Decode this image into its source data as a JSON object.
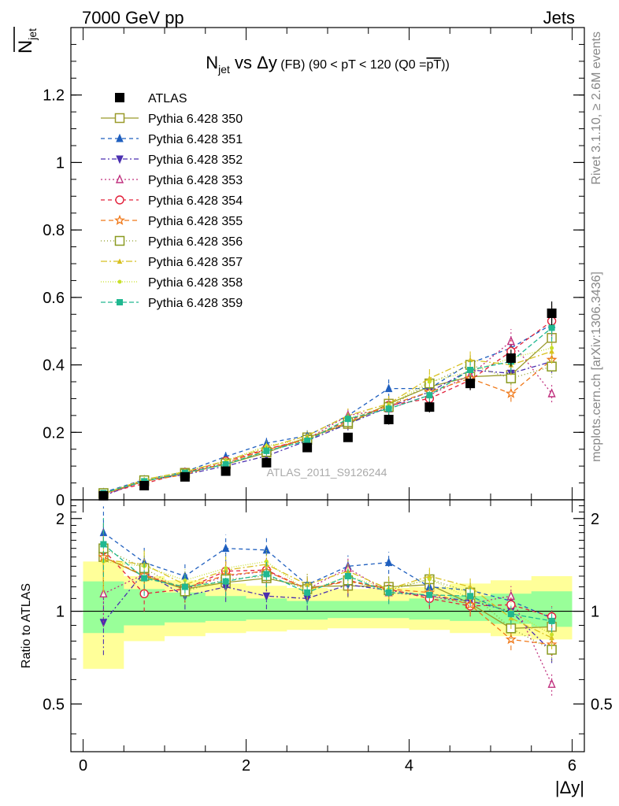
{
  "header": {
    "left": "7000 GeV pp",
    "right": "Jets"
  },
  "side_labels": {
    "rivet": "Rivet 3.1.10, ≥ 2.6M events",
    "mcplots": "mcplots.cern.ch [arXiv:1306.3436]"
  },
  "watermark": "ATLAS_2011_S9126244",
  "chart_data": [
    {
      "type": "line",
      "panel": "main",
      "title": "N_jet vs Δy (FB) (90 < pT < 120 (Q0 = pT))",
      "title_parts": {
        "n": "N",
        "sub": "jet",
        "vs": " vs ",
        "dy": "Δy",
        "fb": " (FB) ",
        "cut": "(90 < pT < 120 (Q0 =",
        "ptbar": "pT",
        "close": "))"
      },
      "ylabel": "N_jet (overlined)",
      "ylabel_parts": {
        "n": "N",
        "sub": "jet"
      },
      "xlim": [
        -0.15,
        6.15
      ],
      "ylim": [
        0,
        1.4
      ],
      "yticks": [
        0,
        0.2,
        0.4,
        0.6,
        0.8,
        1,
        1.2
      ],
      "ytick_labels": [
        "0",
        "0.2",
        "0.4",
        "0.6",
        "0.8",
        "1",
        "1.2"
      ],
      "x": [
        0.25,
        0.75,
        1.25,
        1.75,
        2.25,
        2.75,
        3.25,
        3.75,
        4.25,
        4.75,
        5.25,
        5.75
      ],
      "data": {
        "name": "ATLAS",
        "values": [
          0.012,
          0.042,
          0.068,
          0.085,
          0.11,
          0.155,
          0.185,
          0.238,
          0.275,
          0.345,
          0.42,
          0.553
        ],
        "errors": [
          0.002,
          0.004,
          0.005,
          0.007,
          0.008,
          0.01,
          0.012,
          0.015,
          0.016,
          0.02,
          0.025,
          0.035
        ]
      },
      "legend_position": "top-left"
    },
    {
      "type": "line",
      "panel": "ratio",
      "ylabel": "Ratio to ATLAS",
      "xlabel": "|Δy|",
      "xlim": [
        -0.15,
        6.15
      ],
      "ylim": [
        0.35,
        2.3
      ],
      "xticks": [
        0,
        2,
        4,
        6
      ],
      "xtick_labels": [
        "0",
        "2",
        "4",
        "6"
      ],
      "yticks": [
        0.5,
        1,
        2
      ],
      "ytick_labels": [
        "0.5",
        "1",
        "2"
      ],
      "band_edges": [
        0,
        0.5,
        1,
        1.5,
        2,
        2.5,
        3,
        3.5,
        4,
        4.5,
        5,
        5.5,
        6
      ],
      "band_inner": [
        [
          0.85,
          1.25
        ],
        [
          0.9,
          1.18
        ],
        [
          0.92,
          1.15
        ],
        [
          0.93,
          1.12
        ],
        [
          0.94,
          1.1
        ],
        [
          0.94,
          1.08
        ],
        [
          0.95,
          1.08
        ],
        [
          0.95,
          1.08
        ],
        [
          0.94,
          1.1
        ],
        [
          0.93,
          1.12
        ],
        [
          0.91,
          1.14
        ],
        [
          0.89,
          1.16
        ]
      ],
      "band_outer": [
        [
          0.65,
          1.45
        ],
        [
          0.8,
          1.3
        ],
        [
          0.83,
          1.26
        ],
        [
          0.85,
          1.23
        ],
        [
          0.86,
          1.21
        ],
        [
          0.87,
          1.19
        ],
        [
          0.88,
          1.18
        ],
        [
          0.88,
          1.19
        ],
        [
          0.87,
          1.2
        ],
        [
          0.85,
          1.23
        ],
        [
          0.83,
          1.26
        ],
        [
          0.81,
          1.3
        ]
      ]
    }
  ],
  "series": [
    {
      "name": "Pythia 6.428 350",
      "color": "#9a9a2a",
      "marker": "square-open",
      "dash": "",
      "size": 11,
      "values": [
        0.018,
        0.055,
        0.08,
        0.105,
        0.14,
        0.185,
        0.225,
        0.285,
        0.335,
        0.365,
        0.37,
        0.48
      ],
      "ratio": [
        1.5,
        1.3,
        1.18,
        1.24,
        1.28,
        1.2,
        1.21,
        1.2,
        1.22,
        1.06,
        0.88,
        0.89
      ]
    },
    {
      "name": "Pythia 6.428 351",
      "color": "#1f5fbf",
      "marker": "triangle-up",
      "dash": "5,4",
      "size": 8,
      "values": [
        0.022,
        0.06,
        0.083,
        0.128,
        0.168,
        0.19,
        0.25,
        0.33,
        0.33,
        0.405,
        0.45,
        0.52
      ],
      "ratio": [
        1.8,
        1.44,
        1.3,
        1.6,
        1.58,
        1.22,
        1.4,
        1.44,
        1.2,
        1.17,
        1.08,
        0.95
      ]
    },
    {
      "name": "Pythia 6.428 352",
      "color": "#4a2fb0",
      "marker": "triangle-down",
      "dash": "6,3,2,3",
      "size": 8,
      "values": [
        0.012,
        0.057,
        0.075,
        0.1,
        0.13,
        0.175,
        0.225,
        0.275,
        0.32,
        0.385,
        0.375,
        0.41
      ],
      "ratio": [
        0.92,
        1.34,
        1.12,
        1.2,
        1.12,
        1.1,
        1.22,
        1.17,
        1.12,
        1.08,
        1.0,
        0.74
      ]
    },
    {
      "name": "Pythia 6.428 353",
      "color": "#c0307e",
      "marker": "triangle-up-open",
      "dash": "2,3",
      "size": 8,
      "values": [
        0.014,
        0.055,
        0.08,
        0.11,
        0.15,
        0.18,
        0.25,
        0.27,
        0.31,
        0.37,
        0.47,
        0.315
      ],
      "ratio": [
        1.14,
        1.32,
        1.18,
        1.3,
        1.35,
        1.18,
        1.38,
        1.15,
        1.12,
        1.06,
        1.12,
        0.58
      ]
    },
    {
      "name": "Pythia 6.428 354",
      "color": "#e2203a",
      "marker": "circle-open",
      "dash": "5,4",
      "size": 10,
      "values": [
        0.019,
        0.048,
        0.081,
        0.115,
        0.15,
        0.18,
        0.235,
        0.28,
        0.3,
        0.355,
        0.44,
        0.53
      ],
      "ratio": [
        1.58,
        1.14,
        1.18,
        1.35,
        1.36,
        1.18,
        1.26,
        1.18,
        1.1,
        1.04,
        1.05,
        0.96
      ]
    },
    {
      "name": "Pythia 6.428 355",
      "color": "#f07818",
      "marker": "star-open",
      "dash": "6,4",
      "size": 11,
      "values": [
        0.018,
        0.055,
        0.075,
        0.11,
        0.148,
        0.18,
        0.23,
        0.28,
        0.32,
        0.36,
        0.315,
        0.415
      ],
      "ratio": [
        1.5,
        1.31,
        1.19,
        1.31,
        1.35,
        1.18,
        1.25,
        1.18,
        1.15,
        1.05,
        0.81,
        0.78
      ]
    },
    {
      "name": "Pythia 6.428 356",
      "color": "#8a9a20",
      "marker": "square-open",
      "dash": "1,3",
      "size": 11,
      "values": [
        0.02,
        0.058,
        0.078,
        0.108,
        0.142,
        0.178,
        0.23,
        0.275,
        0.345,
        0.4,
        0.36,
        0.395
      ],
      "ratio": [
        1.6,
        1.38,
        1.16,
        1.27,
        1.3,
        1.18,
        1.26,
        1.17,
        1.27,
        1.15,
        0.88,
        0.75
      ]
    },
    {
      "name": "Pythia 6.428 357",
      "color": "#d8c020",
      "marker": "tri-small",
      "dash": "8,3,2,3",
      "size": 5,
      "values": [
        0.018,
        0.06,
        0.083,
        0.115,
        0.155,
        0.19,
        0.25,
        0.285,
        0.36,
        0.415,
        0.4,
        0.44
      ],
      "ratio": [
        1.47,
        1.42,
        1.22,
        1.36,
        1.42,
        1.22,
        1.35,
        1.18,
        1.3,
        1.2,
        0.95,
        0.82
      ]
    },
    {
      "name": "Pythia 6.428 358",
      "color": "#c8e028",
      "marker": "dot-small",
      "dash": "1,2",
      "size": 4,
      "values": [
        0.017,
        0.058,
        0.085,
        0.115,
        0.16,
        0.18,
        0.24,
        0.28,
        0.35,
        0.38,
        0.42,
        0.45
      ],
      "ratio": [
        1.45,
        1.4,
        1.26,
        1.38,
        1.45,
        1.16,
        1.3,
        1.18,
        1.27,
        1.1,
        1.0,
        0.84
      ]
    },
    {
      "name": "Pythia 6.428 359",
      "color": "#20b890",
      "marker": "square-small",
      "dash": "6,3",
      "size": 7,
      "values": [
        0.02,
        0.055,
        0.08,
        0.105,
        0.145,
        0.175,
        0.24,
        0.27,
        0.31,
        0.385,
        0.41,
        0.51
      ],
      "ratio": [
        1.65,
        1.28,
        1.2,
        1.25,
        1.32,
        1.15,
        1.3,
        1.15,
        1.13,
        1.12,
        0.98,
        0.93
      ]
    }
  ]
}
